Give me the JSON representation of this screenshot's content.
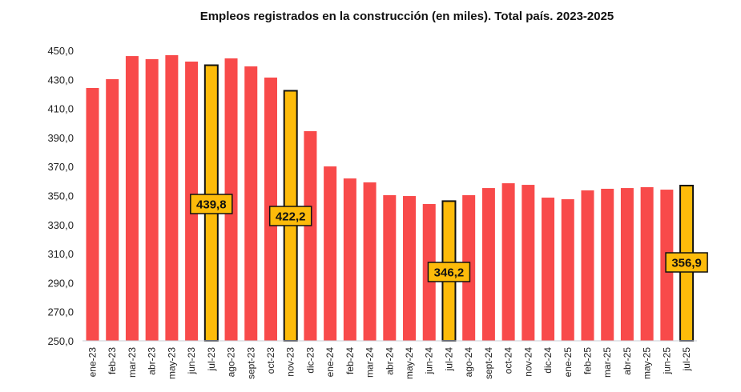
{
  "chart_data": {
    "type": "bar",
    "title": "Empleos registrados en la construcción (en miles). Total país. 2023-2025",
    "xlabel": "",
    "ylabel": "",
    "ylim": [
      250,
      450
    ],
    "yticks": [
      "250,0",
      "270,0",
      "290,0",
      "310,0",
      "330,0",
      "350,0",
      "370,0",
      "390,0",
      "410,0",
      "430,0",
      "450,0"
    ],
    "grid": false,
    "colors": {
      "default": "#f84a4a",
      "highlight": "#fdbb0a",
      "outline": "#111111"
    },
    "categories": [
      "ene-23",
      "feb-23",
      "mar-23",
      "abr-23",
      "may-23",
      "jun-23",
      "jul-23",
      "ago-23",
      "sept-23",
      "oct-23",
      "nov-23",
      "dic-23",
      "ene-24",
      "feb-24",
      "mar-24",
      "abr-24",
      "may-24",
      "jun-24",
      "jul-24",
      "ago-24",
      "sept-24",
      "oct-24",
      "nov-24",
      "dic-24",
      "ene-25",
      "feb-25",
      "mar-25",
      "abr-25",
      "may-25",
      "jun-25",
      "jul-25"
    ],
    "values": [
      424.1,
      430.2,
      446.1,
      444.0,
      446.7,
      442.3,
      439.8,
      444.5,
      439.0,
      431.3,
      422.2,
      394.4,
      370.1,
      361.8,
      359.1,
      350.3,
      349.7,
      344.2,
      346.2,
      350.3,
      355.2,
      358.5,
      357.4,
      348.6,
      347.5,
      353.6,
      354.7,
      355.2,
      355.8,
      354.1,
      356.9
    ],
    "highlighted": [
      {
        "index": 6,
        "label": "439,8"
      },
      {
        "index": 10,
        "label": "422,2"
      },
      {
        "index": 18,
        "label": "346,2"
      },
      {
        "index": 30,
        "label": "356,9"
      }
    ]
  }
}
